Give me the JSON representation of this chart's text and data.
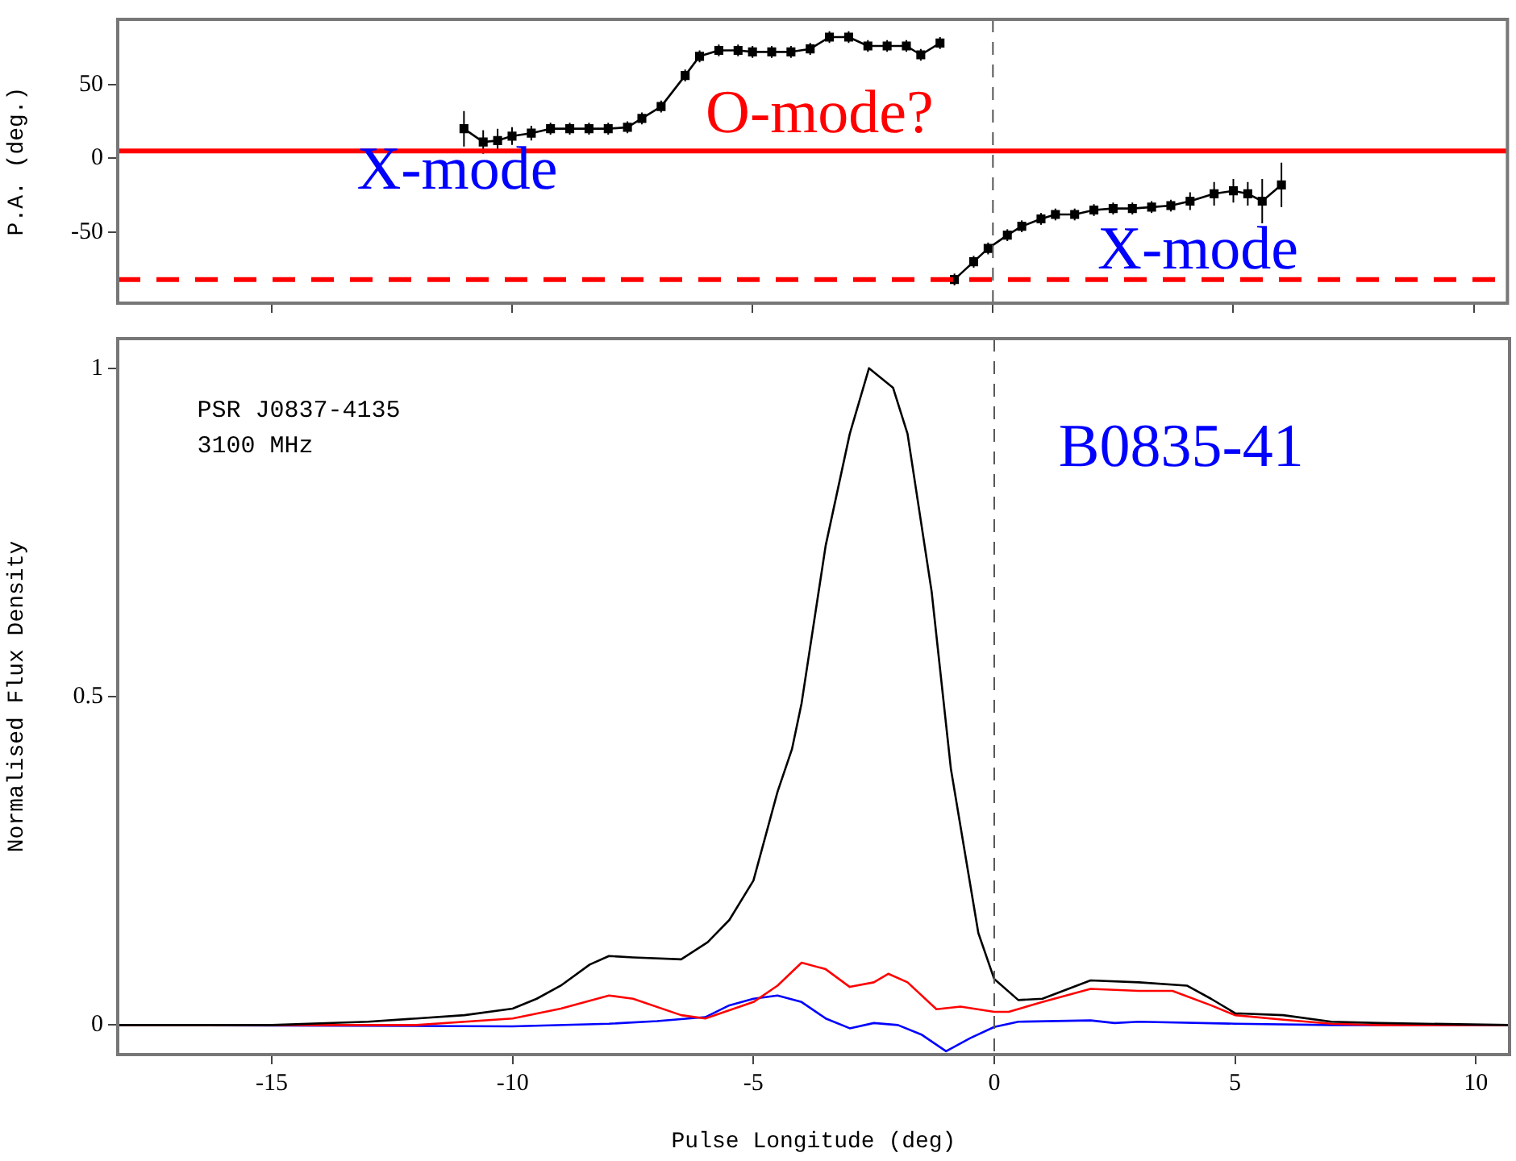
{
  "chart_data": [
    {
      "type": "line",
      "ylabel": "P.A. (deg.)",
      "xlim": [
        -18.2,
        10.7
      ],
      "ylim": [
        -98,
        94
      ],
      "xticks": [
        -15,
        -10,
        -5,
        0,
        5,
        10
      ],
      "yticks": [
        -50,
        0,
        50
      ],
      "tick_labels": "y",
      "marker": "square",
      "line_style": "solid",
      "series": [
        {
          "color": "#000000",
          "x": [
            -11.0,
            -10.6,
            -10.3,
            -10.0,
            -9.6,
            -9.2,
            -8.8,
            -8.4,
            -8.0,
            -7.6,
            -7.3,
            -6.9,
            -6.4,
            -6.1,
            -5.7,
            -5.3,
            -5.0,
            -4.6,
            -4.2,
            -3.8,
            -3.4,
            -3.0,
            -2.6,
            -2.2,
            -1.8,
            -1.5,
            -1.1
          ],
          "values": [
            20,
            11,
            12,
            15,
            17,
            20,
            20,
            20,
            20,
            21,
            27,
            35,
            56,
            69,
            73,
            73,
            72,
            72,
            72,
            74,
            82,
            82,
            76,
            76,
            76,
            70,
            78
          ],
          "errors": [
            12,
            8,
            8,
            6,
            5,
            4,
            4,
            4,
            4,
            4,
            4,
            4,
            4,
            4,
            4,
            4,
            4,
            4,
            4,
            4,
            4,
            4,
            4,
            4,
            4,
            4,
            4
          ]
        },
        {
          "color": "#000000",
          "x": [
            -0.8,
            -0.4,
            -0.1,
            0.3,
            0.6,
            1.0,
            1.3,
            1.7,
            2.1,
            2.5,
            2.9,
            3.3,
            3.7,
            4.1,
            4.6,
            5.0,
            5.3,
            5.6,
            6.0
          ],
          "values": [
            -82,
            -70,
            -61,
            -52,
            -46,
            -41,
            -38,
            -38,
            -35,
            -34,
            -34,
            -33,
            -32,
            -29,
            -24,
            -22,
            -24,
            -29,
            -18
          ],
          "errors": [
            4,
            4,
            4,
            4,
            4,
            4,
            4,
            4,
            4,
            4,
            4,
            4,
            4,
            6,
            8,
            8,
            8,
            15,
            15
          ]
        }
      ],
      "ref_lines": [
        {
          "axis": "y",
          "value": 5,
          "color": "#ff0000",
          "line_style": "solid"
        },
        {
          "axis": "y",
          "value": -82,
          "color": "#ff0000",
          "line_style": "dashed"
        },
        {
          "axis": "x",
          "value": 0,
          "color": "#555555",
          "line_style": "dashed"
        }
      ],
      "annotations": [
        "O-mode?",
        "X-mode",
        "X-mode"
      ]
    },
    {
      "type": "line",
      "xlabel": "Pulse Longitude (deg)",
      "ylabel": "Normalised Flux Density",
      "xlim": [
        -18.2,
        10.7
      ],
      "ylim": [
        -0.045,
        1.045
      ],
      "xticks": [
        -15,
        -10,
        -5,
        0,
        5,
        10
      ],
      "yticks": [
        0,
        0.5,
        1
      ],
      "marker": "none",
      "line_style": "solid",
      "series": [
        {
          "color": "#000000",
          "x": [
            -18.2,
            -15,
            -13,
            -12,
            -11,
            -10,
            -9.5,
            -9,
            -8.4,
            -8,
            -7.5,
            -6.5,
            -5.95,
            -5.5,
            -5,
            -4.5,
            -4.2,
            -4,
            -3.5,
            -3,
            -2.6,
            -2.1,
            -1.8,
            -1.3,
            -0.9,
            -0.33,
            0,
            0.5,
            1,
            2,
            3,
            4,
            4.5,
            5,
            6,
            7,
            8,
            10.7
          ],
          "values": [
            0,
            0,
            0.005,
            0.01,
            0.015,
            0.025,
            0.04,
            0.06,
            0.092,
            0.105,
            0.103,
            0.1,
            0.126,
            0.16,
            0.22,
            0.355,
            0.42,
            0.49,
            0.73,
            0.9,
            1,
            0.97,
            0.9,
            0.66,
            0.39,
            0.14,
            0.07,
            0.038,
            0.04,
            0.068,
            0.065,
            0.06,
            0.04,
            0.018,
            0.015,
            0.005,
            0.003,
            0
          ]
        },
        {
          "color": "#ff0000",
          "x": [
            -18.2,
            -12,
            -10,
            -9,
            -8,
            -7.5,
            -6.5,
            -6,
            -5,
            -4.5,
            -4,
            -3.5,
            -3,
            -2.5,
            -2.2,
            -1.8,
            -1.2,
            -0.7,
            0,
            0.3,
            1,
            2,
            3,
            3.7,
            4.5,
            5,
            6,
            7,
            8,
            10.7
          ],
          "values": [
            0,
            0,
            0.01,
            0.025,
            0.045,
            0.04,
            0.015,
            0.01,
            0.035,
            0.06,
            0.095,
            0.085,
            0.058,
            0.065,
            0.078,
            0.065,
            0.024,
            0.028,
            0.02,
            0.02,
            0.035,
            0.055,
            0.052,
            0.052,
            0.03,
            0.015,
            0.008,
            0.002,
            0,
            0
          ]
        },
        {
          "color": "#0000ff",
          "x": [
            -18.2,
            -10,
            -8,
            -7,
            -6,
            -5.5,
            -5,
            -4.5,
            -4,
            -3.5,
            -3,
            -2.5,
            -2,
            -1.5,
            -1,
            -0.5,
            0,
            0.5,
            2,
            2.5,
            3,
            5,
            7,
            10.7
          ],
          "values": [
            0,
            -0.002,
            0.002,
            0.006,
            0.012,
            0.03,
            0.04,
            0.045,
            0.035,
            0.01,
            -0.005,
            0.003,
            0,
            -0.015,
            -0.04,
            -0.02,
            -0.003,
            0.005,
            0.007,
            0.003,
            0.005,
            0.002,
            0,
            0
          ]
        }
      ],
      "ref_lines": [
        {
          "axis": "x",
          "value": 0,
          "color": "#555555",
          "line_style": "dashed"
        }
      ],
      "annotations": [
        "PSR J0837-4135",
        "3100 MHz",
        "B0835-41"
      ]
    }
  ]
}
